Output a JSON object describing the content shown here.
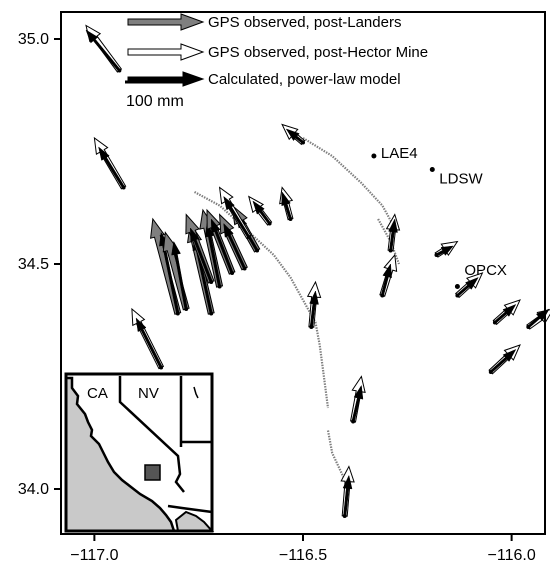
{
  "map": {
    "lon_range": [
      -117.08,
      -115.92
    ],
    "lat_range": [
      33.9,
      35.06
    ],
    "x_ticks": [
      {
        "value": -117.0,
        "label": "−117.0"
      },
      {
        "value": -116.5,
        "label": "−116.5"
      },
      {
        "value": -116.0,
        "label": "−116.0"
      }
    ],
    "y_ticks": [
      {
        "value": 35.0,
        "label": "35.0"
      },
      {
        "value": 34.5,
        "label": "34.5"
      },
      {
        "value": 34.0,
        "label": "34.0"
      }
    ]
  },
  "legend": {
    "items": [
      {
        "label": "GPS observed, post-Landers",
        "style": "gray"
      },
      {
        "label": "GPS observed, post-Hector Mine",
        "style": "white"
      },
      {
        "label": "Calculated, power-law model",
        "style": "black"
      }
    ],
    "scale_label": "100 mm"
  },
  "stations": [
    {
      "name": "LAE4",
      "lon": -116.33,
      "lat": 34.74
    },
    {
      "name": "LDSW",
      "lon": -116.19,
      "lat": 34.71
    },
    {
      "name": "OPCX",
      "lon": -116.13,
      "lat": 34.45,
      "label_lon": -116.13,
      "label_lat": 34.48
    }
  ],
  "vectors": [
    {
      "lon": -116.94,
      "lat": 34.93,
      "white": [
        -0.08,
        0.1
      ],
      "black": [
        -0.08,
        0.09
      ]
    },
    {
      "lon": -116.93,
      "lat": 34.67,
      "white": [
        -0.07,
        0.11
      ],
      "black": [
        -0.06,
        0.09
      ]
    },
    {
      "lon": -116.84,
      "lat": 34.27,
      "white": [
        -0.07,
        0.13
      ],
      "black": [
        -0.06,
        0.11
      ]
    },
    {
      "lon": -116.8,
      "lat": 34.39,
      "gray": [
        -0.06,
        0.21
      ],
      "black": [
        -0.04,
        0.18
      ]
    },
    {
      "lon": -116.78,
      "lat": 34.4,
      "gray": [
        -0.05,
        0.17
      ],
      "black": [
        -0.03,
        0.15
      ]
    },
    {
      "lon": -116.72,
      "lat": 34.39,
      "gray": [
        -0.05,
        0.2
      ],
      "black": [
        -0.04,
        0.17
      ]
    },
    {
      "lon": -116.7,
      "lat": 34.45,
      "gray": [
        -0.04,
        0.17
      ],
      "black": [
        -0.03,
        0.14
      ]
    },
    {
      "lon": -116.72,
      "lat": 34.46,
      "gray": [
        -0.06,
        0.15
      ],
      "black": [
        -0.05,
        0.12
      ]
    },
    {
      "lon": -116.67,
      "lat": 34.48,
      "gray": [
        -0.06,
        0.14
      ],
      "black": [
        -0.05,
        0.12
      ]
    },
    {
      "lon": -116.64,
      "lat": 34.49,
      "gray": [
        -0.06,
        0.12
      ],
      "black": [
        -0.05,
        0.1
      ]
    },
    {
      "lon": -116.61,
      "lat": 34.53,
      "gray": [
        -0.06,
        0.1
      ],
      "black": [
        -0.05,
        0.08
      ]
    },
    {
      "lon": -116.63,
      "lat": 34.56,
      "white": [
        -0.07,
        0.11
      ],
      "black": [
        -0.06,
        0.09
      ]
    },
    {
      "lon": -116.58,
      "lat": 34.59,
      "white": [
        -0.05,
        0.06
      ],
      "black": [
        -0.04,
        0.05
      ]
    },
    {
      "lon": -116.53,
      "lat": 34.6,
      "white": [
        -0.02,
        0.07
      ],
      "black": [
        -0.02,
        0.06
      ]
    },
    {
      "lon": -116.5,
      "lat": 34.77,
      "white": [
        -0.05,
        0.04
      ],
      "black": [
        -0.04,
        0.03
      ]
    },
    {
      "lon": -116.48,
      "lat": 34.36,
      "white": [
        0.01,
        0.1
      ],
      "black": [
        0.01,
        0.08
      ]
    },
    {
      "lon": -116.38,
      "lat": 34.15,
      "white": [
        0.02,
        0.1
      ],
      "black": [
        0.02,
        0.08
      ]
    },
    {
      "lon": -116.4,
      "lat": 33.94,
      "white": [
        0.01,
        0.11
      ],
      "black": [
        0.01,
        0.09
      ]
    },
    {
      "lon": -116.31,
      "lat": 34.43,
      "white": [
        0.03,
        0.09
      ],
      "black": [
        0.02,
        0.07
      ]
    },
    {
      "lon": -116.29,
      "lat": 34.53,
      "white": [
        0.01,
        0.08
      ],
      "black": [
        0.01,
        0.07
      ]
    },
    {
      "lon": -116.18,
      "lat": 34.52,
      "white": [
        0.05,
        0.03
      ],
      "black": [
        0.04,
        0.02
      ]
    },
    {
      "lon": -116.13,
      "lat": 34.43,
      "white": [
        0.06,
        0.05
      ],
      "black": [
        0.05,
        0.04
      ]
    },
    {
      "lon": -116.04,
      "lat": 34.37,
      "white": [
        0.06,
        0.05
      ],
      "black": [
        0.05,
        0.04
      ]
    },
    {
      "lon": -116.05,
      "lat": 34.26,
      "white": [
        0.07,
        0.06
      ],
      "black": [
        0.06,
        0.05
      ]
    },
    {
      "lon": -115.96,
      "lat": 34.36,
      "white": [
        0.06,
        0.04
      ],
      "black": [
        0.05,
        0.04
      ]
    }
  ],
  "inset": {
    "labels": [
      "CA",
      "NV"
    ]
  },
  "colors": {
    "gray_arrow": "#7f7f7f",
    "white_arrow": "#ffffff",
    "black_arrow": "#000000",
    "rupture": "#7f7f7f",
    "inset_ocean": "#c9c9c9",
    "inset_box": "#555555"
  }
}
